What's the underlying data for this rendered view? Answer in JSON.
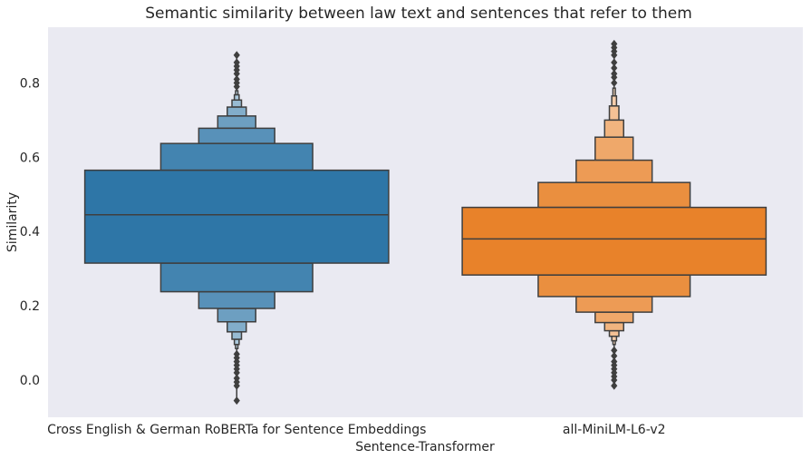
{
  "chart_data": {
    "type": "boxenplot",
    "title": "Semantic similarity between law text and sentences that refer to them",
    "xlabel": "Sentence-Transformer",
    "ylabel": "Similarity",
    "ylim": [
      -0.1,
      0.95
    ],
    "yticks": [
      0.0,
      0.2,
      0.4,
      0.6,
      0.8
    ],
    "ytick_labels": [
      "0.0",
      "0.2",
      "0.4",
      "0.6",
      "0.8"
    ],
    "grid": false,
    "background": "#eaeaf2",
    "categories": [
      "Cross English & German RoBERTa for Sentence Embeddings",
      "all-MiniLM-L6-v2"
    ],
    "series": [
      {
        "color": "#2e76a7",
        "median": 0.445,
        "boxes": [
          {
            "low": 0.315,
            "high": 0.565
          },
          {
            "low": 0.238,
            "high": 0.637
          },
          {
            "low": 0.193,
            "high": 0.678
          },
          {
            "low": 0.157,
            "high": 0.711
          },
          {
            "low": 0.13,
            "high": 0.735
          },
          {
            "low": 0.11,
            "high": 0.754
          },
          {
            "low": 0.096,
            "high": 0.768
          },
          {
            "low": 0.085,
            "high": 0.779
          }
        ],
        "outliers": [
          0.79,
          0.8,
          0.81,
          0.825,
          0.835,
          0.845,
          0.855,
          0.875,
          0.07,
          0.06,
          0.05,
          0.04,
          0.03,
          0.02,
          0.005,
          -0.005,
          -0.015,
          -0.055
        ]
      },
      {
        "color": "#e8822a",
        "median": 0.38,
        "boxes": [
          {
            "low": 0.283,
            "high": 0.465
          },
          {
            "low": 0.225,
            "high": 0.532
          },
          {
            "low": 0.183,
            "high": 0.592
          },
          {
            "low": 0.155,
            "high": 0.654
          },
          {
            "low": 0.133,
            "high": 0.7
          },
          {
            "low": 0.118,
            "high": 0.738
          },
          {
            "low": 0.106,
            "high": 0.765
          },
          {
            "low": 0.096,
            "high": 0.786
          }
        ],
        "outliers": [
          0.8,
          0.815,
          0.825,
          0.84,
          0.855,
          0.875,
          0.885,
          0.895,
          0.905,
          0.08,
          0.065,
          0.05,
          0.04,
          0.03,
          0.02,
          0.01,
          0.0,
          -0.015
        ]
      }
    ]
  }
}
